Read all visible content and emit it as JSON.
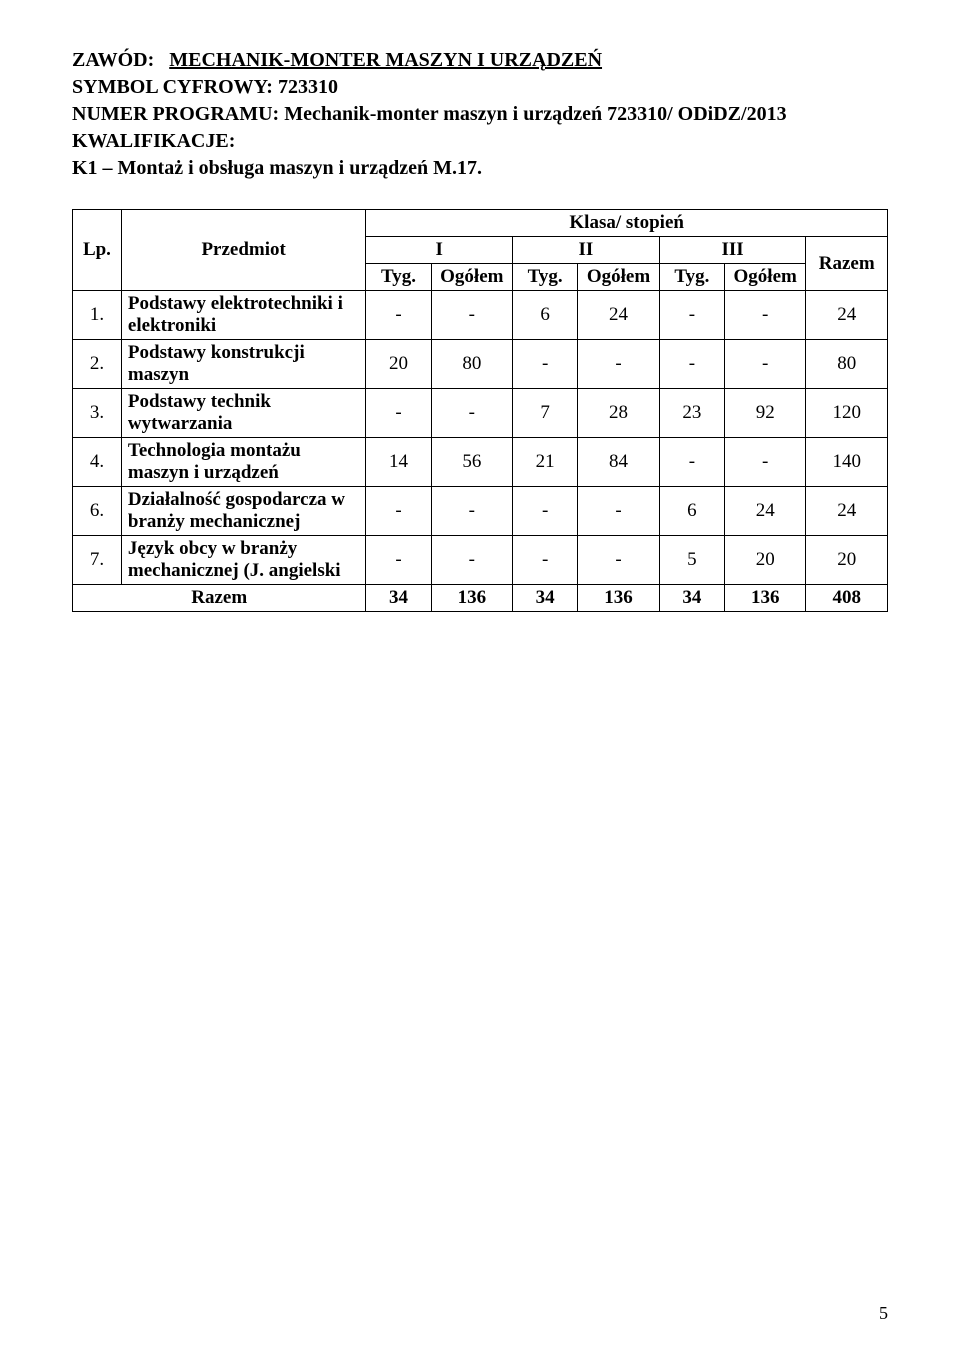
{
  "header": {
    "zawod_label": "ZAWÓD:",
    "zawod_value": "MECHANIK-MONTER MASZYN I URZĄDZEŃ",
    "symbol_label": "SYMBOL CYFROWY:",
    "symbol_value": "723310",
    "numer_label": "NUMER PROGRAMU:",
    "numer_value": "Mechanik-monter maszyn i urządzeń 723310/ ODiDZ/2013",
    "kwalifikacje_label": "KWALIFIKACJE:",
    "kwalifikacje_value": "K1 – Montaż i obsługa maszyn i urządzeń  M.17."
  },
  "table": {
    "head": {
      "lp": "Lp.",
      "przedmiot": "Przedmiot",
      "klasa": "Klasa/ stopień",
      "I": "I",
      "II": "II",
      "III": "III",
      "razem": "Razem",
      "tyg": "Tyg.",
      "ogolem": "Ogółem"
    },
    "rows": [
      {
        "lp": "1.",
        "subject": "Podstawy elektrotechniki i elektroniki",
        "c": [
          "-",
          "-",
          "6",
          "24",
          "-",
          "-",
          "24"
        ]
      },
      {
        "lp": "2.",
        "subject": "Podstawy konstrukcji maszyn",
        "c": [
          "20",
          "80",
          "-",
          "-",
          "-",
          "-",
          "80"
        ]
      },
      {
        "lp": "3.",
        "subject": "Podstawy technik wytwarzania",
        "c": [
          "-",
          "-",
          "7",
          "28",
          "23",
          "92",
          "120"
        ]
      },
      {
        "lp": "4.",
        "subject": "Technologia montażu maszyn i urządzeń",
        "c": [
          "14",
          "56",
          "21",
          "84",
          "-",
          "-",
          "140"
        ]
      },
      {
        "lp": "6.",
        "subject": "Działalność gospodarcza w branży mechanicznej",
        "c": [
          "-",
          "-",
          "-",
          "-",
          "6",
          "24",
          "24"
        ]
      },
      {
        "lp": "7.",
        "subject": "Język obcy w branży mechanicznej\n(J. angielski",
        "c": [
          "-",
          "-",
          "-",
          "-",
          "5",
          "20",
          "20"
        ]
      }
    ],
    "total": {
      "label": "Razem",
      "c": [
        "34",
        "136",
        "34",
        "136",
        "34",
        "136",
        "408"
      ]
    }
  },
  "page_number": "5"
}
